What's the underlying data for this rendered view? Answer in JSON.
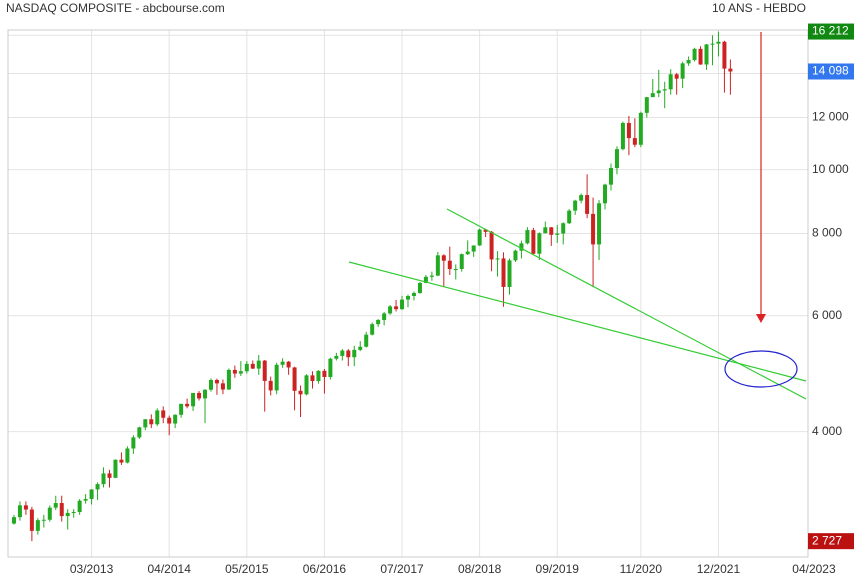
{
  "chart_data": {
    "type": "candlestick",
    "title": "NASDAQ COMPOSITE - abcbourse.com",
    "subtitle": "10 ANS - HEBDO",
    "log_scale": true,
    "grid": true,
    "up_color": "#22aa22",
    "down_color": "#cc2222",
    "xlim": [
      "2012-01",
      "2023-03"
    ],
    "xticks": [
      {
        "value": "2013-03",
        "label": "03/2013"
      },
      {
        "value": "2014-04",
        "label": "04/2014"
      },
      {
        "value": "2015-05",
        "label": "05/2015"
      },
      {
        "value": "2016-06",
        "label": "06/2016"
      },
      {
        "value": "2017-07",
        "label": "07/2017"
      },
      {
        "value": "2018-08",
        "label": "08/2018"
      },
      {
        "value": "2019-09",
        "label": "09/2019"
      },
      {
        "value": "2020-11",
        "label": "11/2020"
      },
      {
        "value": "2021-12",
        "label": "12/2021"
      },
      {
        "value": "2023-04",
        "label": "04/2023"
      }
    ],
    "ylim": [
      2580,
      16300
    ],
    "yticks": [
      {
        "value": 4000,
        "label": "4 000"
      },
      {
        "value": 6000,
        "label": "6 000"
      },
      {
        "value": 8000,
        "label": "8 000"
      },
      {
        "value": 10000,
        "label": "10 000"
      },
      {
        "value": 12000,
        "label": "12 000"
      }
    ],
    "minor_yticks": [
      14000,
      16000
    ],
    "price_labels": [
      {
        "value": 16212,
        "label": "16 212",
        "color": "#118811"
      },
      {
        "value": 14098,
        "label": "14 098",
        "color": "#3377ee"
      },
      {
        "value": 2727,
        "label": "2 727",
        "color": "#bb1111"
      }
    ],
    "x": [
      "2012-02",
      "2012-03",
      "2012-04",
      "2012-05",
      "2012-06",
      "2012-07",
      "2012-08",
      "2012-09",
      "2012-10",
      "2012-11",
      "2012-12",
      "2013-01",
      "2013-02",
      "2013-03",
      "2013-04",
      "2013-05",
      "2013-06",
      "2013-07",
      "2013-08",
      "2013-09",
      "2013-10",
      "2013-11",
      "2013-12",
      "2014-01",
      "2014-02",
      "2014-03",
      "2014-04",
      "2014-05",
      "2014-06",
      "2014-07",
      "2014-08",
      "2014-09",
      "2014-10",
      "2014-11",
      "2014-12",
      "2015-01",
      "2015-02",
      "2015-03",
      "2015-04",
      "2015-05",
      "2015-06",
      "2015-07",
      "2015-08",
      "2015-09",
      "2015-10",
      "2015-11",
      "2015-12",
      "2016-01",
      "2016-02",
      "2016-03",
      "2016-04",
      "2016-05",
      "2016-06",
      "2016-07",
      "2016-08",
      "2016-09",
      "2016-10",
      "2016-11",
      "2016-12",
      "2017-01",
      "2017-02",
      "2017-03",
      "2017-04",
      "2017-05",
      "2017-06",
      "2017-07",
      "2017-08",
      "2017-09",
      "2017-10",
      "2017-11",
      "2017-12",
      "2018-01",
      "2018-02",
      "2018-03",
      "2018-04",
      "2018-05",
      "2018-06",
      "2018-07",
      "2018-08",
      "2018-09",
      "2018-10",
      "2018-11",
      "2018-12",
      "2019-01",
      "2019-02",
      "2019-03",
      "2019-04",
      "2019-05",
      "2019-06",
      "2019-07",
      "2019-08",
      "2019-09",
      "2019-10",
      "2019-11",
      "2019-12",
      "2020-01",
      "2020-02",
      "2020-03",
      "2020-04",
      "2020-05",
      "2020-06",
      "2020-07",
      "2020-08",
      "2020-09",
      "2020-10",
      "2020-11",
      "2020-12",
      "2021-01",
      "2021-02",
      "2021-03",
      "2021-04",
      "2021-05",
      "2021-06",
      "2021-07",
      "2021-08",
      "2021-09",
      "2021-10",
      "2021-11",
      "2021-12",
      "2022-01",
      "2022-02"
    ],
    "open": [
      2900,
      2966,
      3091,
      3046,
      2827,
      2935,
      2939,
      3066,
      3116,
      2977,
      3010,
      3020,
      3142,
      3160,
      3268,
      3329,
      3456,
      3403,
      3626,
      3590,
      3771,
      3920,
      4060,
      4177,
      4104,
      4308,
      4199,
      4115,
      4243,
      4408,
      4370,
      4580,
      4493,
      4631,
      4792,
      4736,
      4635,
      4964,
      4901,
      4941,
      5070,
      4987,
      5128,
      4777,
      4620,
      5054,
      5109,
      5007,
      4614,
      4558,
      4870,
      4775,
      4948,
      4843,
      5162,
      5213,
      5312,
      5189,
      5324,
      5383,
      5615,
      5825,
      5912,
      6048,
      6199,
      6140,
      6348,
      6429,
      6496,
      6728,
      6874,
      6903,
      7411,
      7273,
      7063,
      7066,
      7442,
      7510,
      7672,
      8110,
      8046,
      7306,
      7331,
      6635,
      7282,
      7533,
      7729,
      8095,
      7453,
      8006,
      8175,
      7963,
      7999,
      8292,
      8665,
      8973,
      9151,
      8567,
      7700,
      8890,
      9490,
      10058,
      10745,
      11775,
      11168,
      10911,
      12199,
      12888,
      13070,
      13192,
      13247,
      13962,
      13749,
      14504,
      14673,
      15259,
      14448,
      15498,
      15538,
      15645,
      14240
    ],
    "high": [
      2990,
      3134,
      3134,
      3075,
      2955,
      2990,
      3090,
      3196,
      3197,
      3050,
      3050,
      3160,
      3215,
      3270,
      3350,
      3530,
      3500,
      3630,
      3720,
      3800,
      3950,
      4070,
      4180,
      4250,
      4340,
      4370,
      4230,
      4250,
      4410,
      4490,
      4580,
      4610,
      4640,
      4820,
      4815,
      4800,
      4990,
      5040,
      5120,
      5120,
      5130,
      5230,
      5140,
      4850,
      5090,
      5170,
      5120,
      5020,
      4700,
      4890,
      4940,
      4960,
      4980,
      5180,
      5270,
      5340,
      5340,
      5400,
      5490,
      5670,
      5860,
      5930,
      6080,
      6230,
      6340,
      6430,
      6460,
      6530,
      6750,
      6920,
      7000,
      7500,
      7440,
      7640,
      7180,
      7460,
      7810,
      7650,
      8140,
      8130,
      8070,
      7520,
      7490,
      7330,
      7560,
      7800,
      8180,
      8160,
      8030,
      8340,
      8180,
      8240,
      8320,
      8710,
      9000,
      9200,
      9840,
      9070,
      8990,
      9520,
      10220,
      10850,
      11830,
      12070,
      11970,
      12250,
      12900,
      13730,
      14180,
      13600,
      14210,
      14030,
      14590,
      14860,
      15320,
      15400,
      15520,
      16000,
      16212,
      15700,
      14700
    ],
    "low": [
      2890,
      2930,
      2990,
      2727,
      2790,
      2860,
      2920,
      3040,
      2920,
      2840,
      2960,
      2990,
      3110,
      3100,
      3150,
      3290,
      3290,
      3400,
      3560,
      3580,
      3700,
      3900,
      4020,
      4050,
      4080,
      4120,
      3950,
      4050,
      4200,
      4340,
      4300,
      4460,
      4120,
      4600,
      4550,
      4560,
      4630,
      4830,
      4860,
      4900,
      4980,
      4880,
      4290,
      4540,
      4560,
      5000,
      4880,
      4310,
      4210,
      4540,
      4650,
      4730,
      4570,
      4800,
      5130,
      5130,
      5030,
      5030,
      5300,
      5370,
      5600,
      5770,
      5800,
      6020,
      6090,
      6120,
      6180,
      6330,
      6480,
      6720,
      6780,
      6890,
      6630,
      6920,
      6810,
      7000,
      7420,
      7370,
      7660,
      7900,
      7010,
      6880,
      6190,
      6460,
      7240,
      7330,
      7700,
      7420,
      7290,
      8000,
      7660,
      7740,
      7700,
      8270,
      8540,
      8890,
      8440,
      6630,
      7290,
      8700,
      9300,
      9840,
      10700,
      10520,
      10820,
      10820,
      12000,
      12980,
      12890,
      12400,
      13000,
      13000,
      13300,
      14380,
      14600,
      14430,
      14180,
      14410,
      14860,
      13094,
      13000
    ],
    "close": [
      2966,
      3091,
      3046,
      2827,
      2935,
      2939,
      3066,
      3116,
      2977,
      3010,
      3020,
      3142,
      3160,
      3268,
      3329,
      3456,
      3403,
      3626,
      3590,
      3771,
      3920,
      4060,
      4177,
      4104,
      4308,
      4199,
      4115,
      4243,
      4408,
      4370,
      4580,
      4493,
      4631,
      4792,
      4736,
      4635,
      4964,
      4901,
      4941,
      5070,
      4987,
      5128,
      4777,
      4620,
      5054,
      5109,
      5007,
      4614,
      4558,
      4870,
      4775,
      4948,
      4843,
      5162,
      5213,
      5312,
      5189,
      5324,
      5383,
      5615,
      5825,
      5912,
      6048,
      6199,
      6140,
      6348,
      6429,
      6496,
      6728,
      6874,
      6903,
      7411,
      7273,
      7063,
      7066,
      7442,
      7510,
      7672,
      8110,
      8046,
      7306,
      7331,
      6635,
      7282,
      7533,
      7729,
      8095,
      7453,
      8006,
      8175,
      7963,
      7999,
      8292,
      8665,
      8973,
      9151,
      8567,
      7700,
      8890,
      9490,
      10058,
      10745,
      11775,
      11168,
      10911,
      12199,
      12888,
      13070,
      13192,
      13247,
      13962,
      13749,
      14504,
      14673,
      15259,
      14448,
      15498,
      15538,
      15645,
      14240,
      14098
    ]
  }
}
